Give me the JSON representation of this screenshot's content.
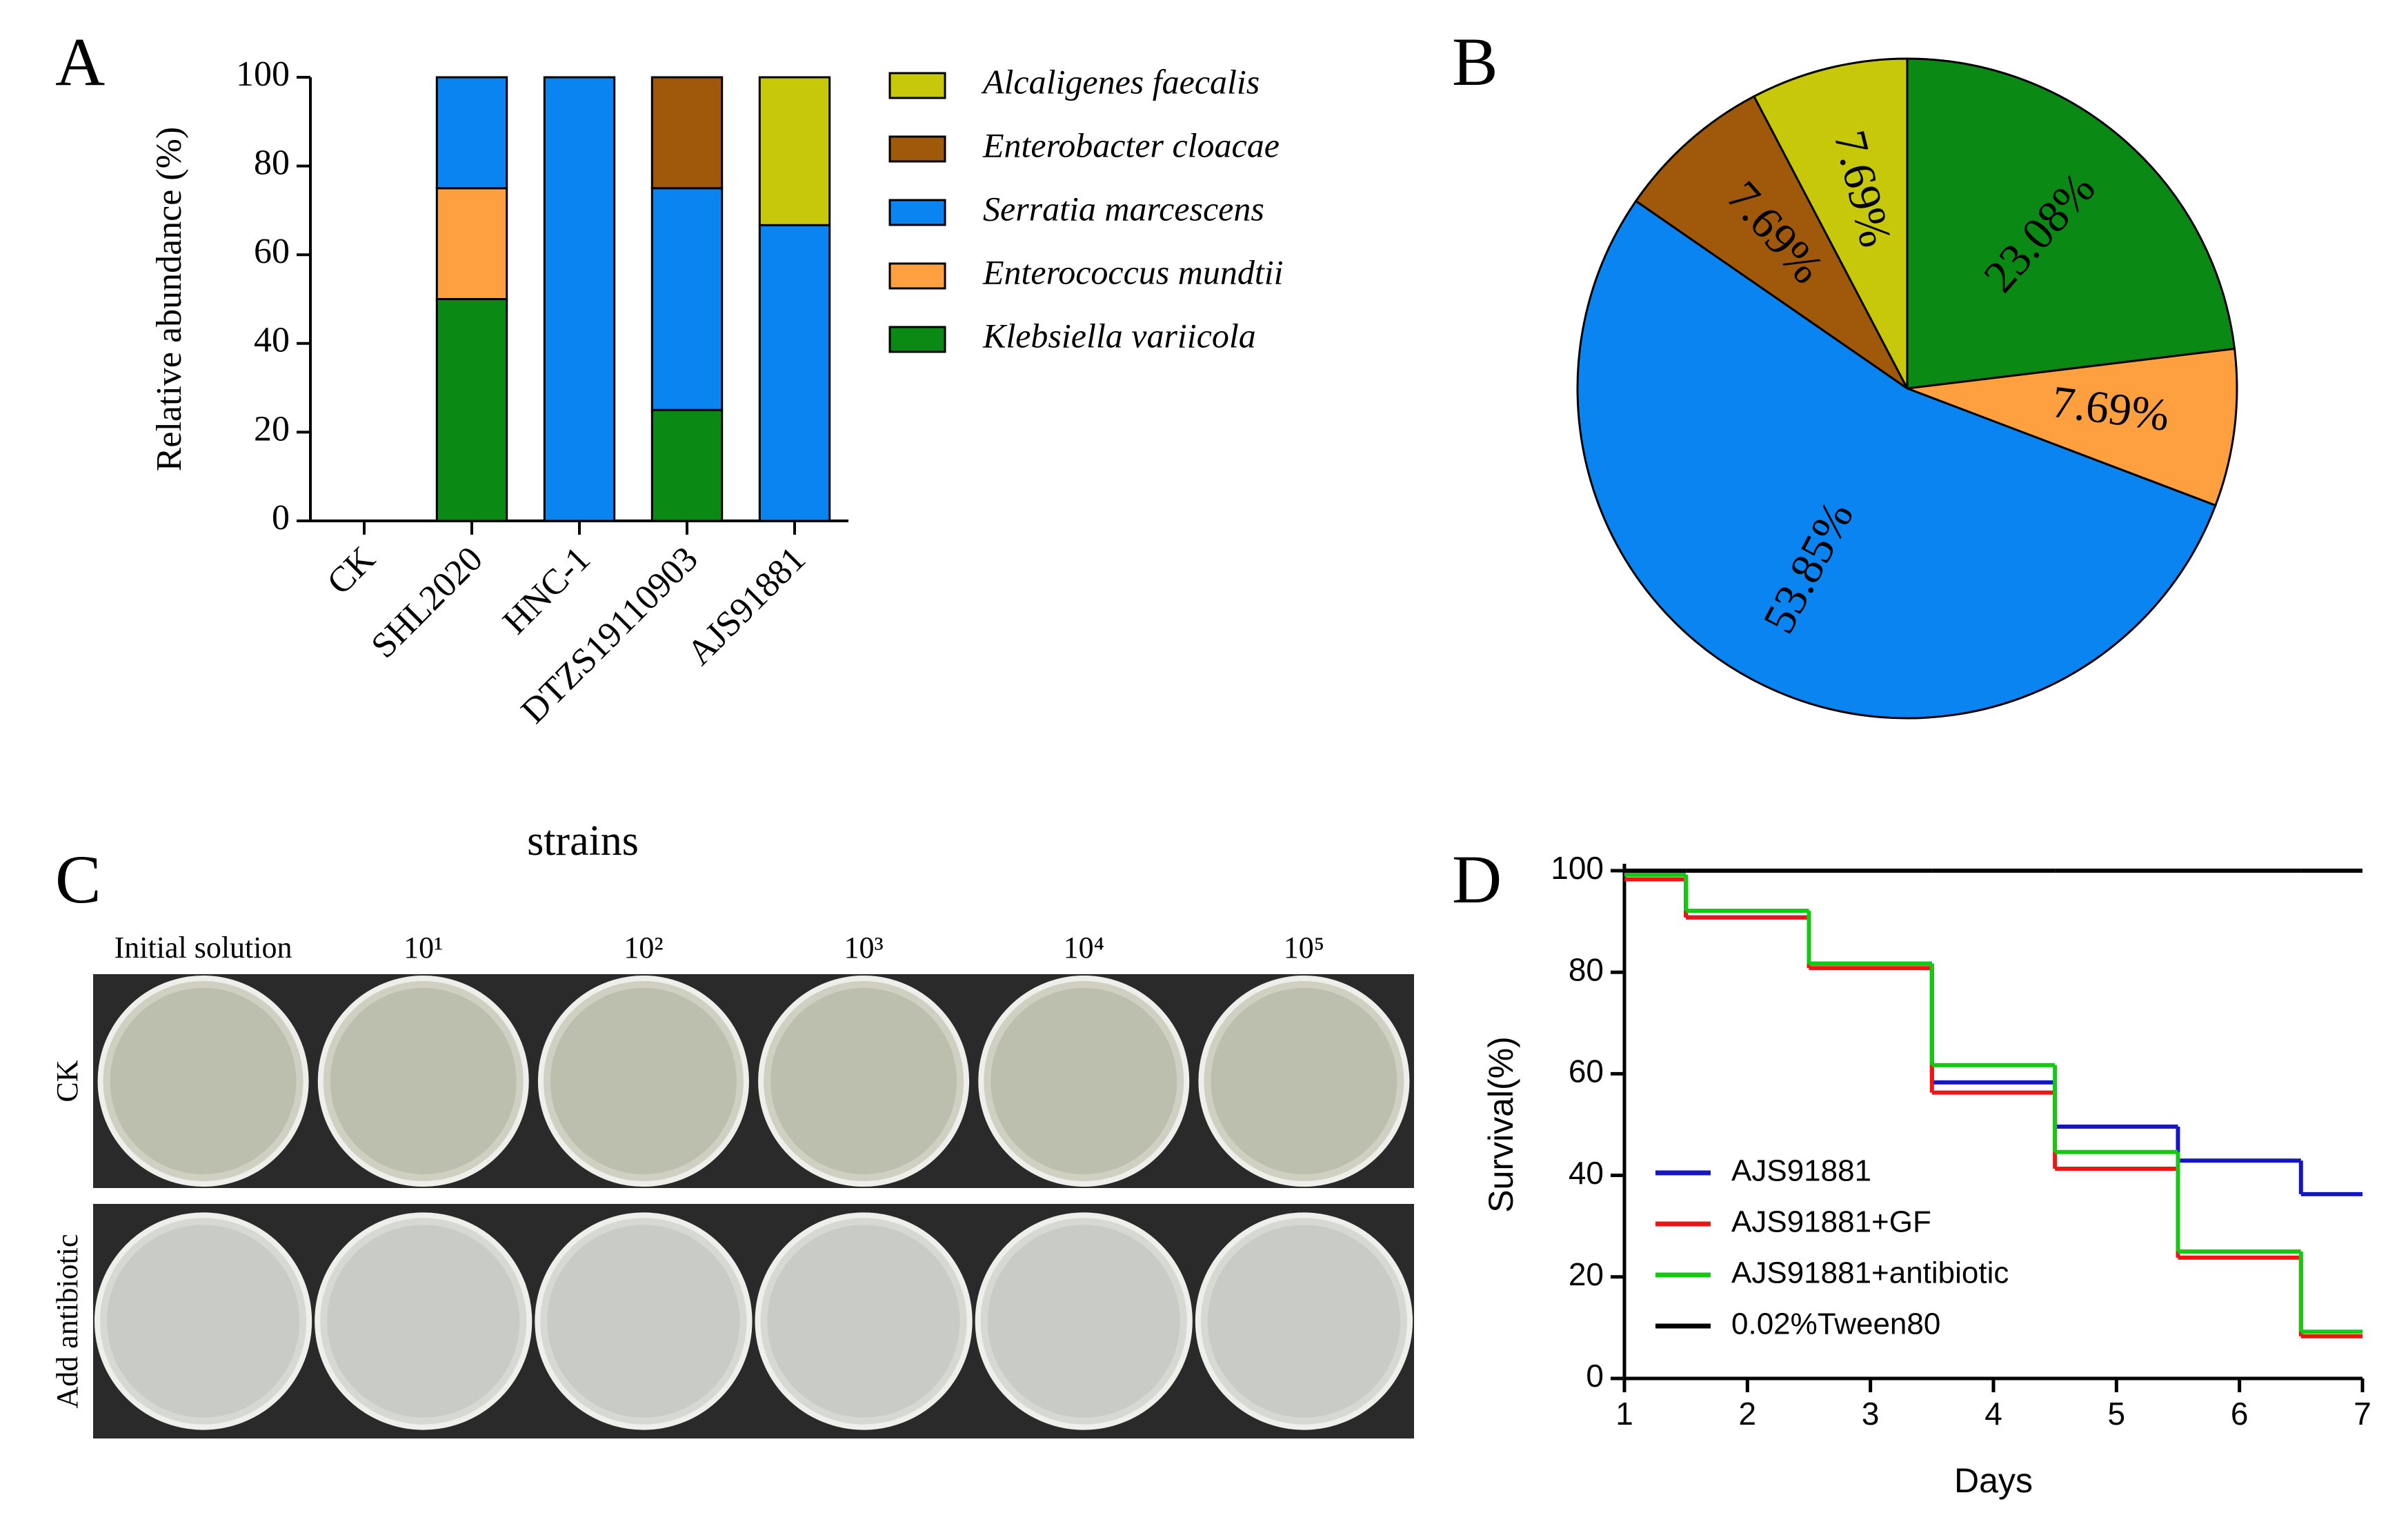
{
  "chart_data": [
    {
      "type": "bar",
      "label": "A",
      "stacked": true,
      "categories": [
        "CK",
        "SHL2020",
        "HNC-1",
        "DTZS19110903",
        "AJS91881"
      ],
      "series": [
        {
          "name": "Klebsiella variicola",
          "color": "#0a8a14",
          "values": [
            0,
            50,
            0,
            25,
            0
          ]
        },
        {
          "name": "Enterococcus mundtii",
          "color": "#ffa040",
          "values": [
            0,
            25,
            0,
            0,
            0
          ]
        },
        {
          "name": "Serratia marcescens",
          "color": "#0a84f0",
          "values": [
            0,
            25,
            100,
            50,
            66.67
          ]
        },
        {
          "name": "Enterobacter cloacae",
          "color": "#a0580a",
          "values": [
            0,
            0,
            0,
            25,
            0
          ]
        },
        {
          "name": "Alcaligenes faecalis",
          "color": "#c8c80a",
          "values": [
            0,
            0,
            0,
            0,
            33.33
          ]
        }
      ],
      "ylabel": "Relative abundance (%)",
      "xlabel": "strains",
      "ylim": [
        0,
        100
      ],
      "yticks": [
        0,
        20,
        40,
        60,
        80,
        100
      ]
    },
    {
      "type": "pie",
      "label": "B",
      "values": [
        23.08,
        7.69,
        53.85,
        7.69,
        7.69
      ],
      "value_labels": [
        "23.08%",
        "7.69%",
        "53.85%",
        "7.69%",
        "7.69%"
      ],
      "colors": [
        "#0a8a14",
        "#ffa040",
        "#0a84f0",
        "#a0580a",
        "#c8c80a"
      ]
    },
    {
      "type": "line",
      "label": "D",
      "step": "post",
      "x": [
        1,
        1.5,
        2.5,
        3.5,
        4.5,
        5.5,
        6.5,
        7
      ],
      "series": [
        {
          "name": "AJS91881",
          "color": "#1414c8",
          "values": [
            98.3,
            90.8,
            81.7,
            58.3,
            49.6,
            42.9,
            36.3,
            36.3
          ]
        },
        {
          "name": "AJS91881+GF",
          "color": "#f01414",
          "values": [
            98.3,
            90.8,
            80.8,
            56.3,
            41.3,
            23.8,
            8.3,
            8.3
          ]
        },
        {
          "name": "AJS91881+antibiotic",
          "color": "#14c814",
          "values": [
            99.2,
            92.1,
            81.7,
            61.7,
            44.6,
            25,
            9.2,
            9.2
          ]
        },
        {
          "name": "0.02%Tween80",
          "color": "#000000",
          "values": [
            100,
            100,
            100,
            100,
            100,
            100,
            100,
            100
          ]
        }
      ],
      "xlabel": "Days",
      "ylabel": "Survival(%)",
      "xlim": [
        1,
        7
      ],
      "xticks": [
        1,
        2,
        3,
        4,
        5,
        6,
        7
      ],
      "ylim": [
        0,
        100
      ],
      "yticks": [
        0,
        20,
        40,
        60,
        80,
        100
      ]
    }
  ],
  "plates": {
    "label": "C",
    "columns": [
      "Initial solution",
      "10¹",
      "10²",
      "10³",
      "10⁴",
      "10⁵"
    ],
    "rows": [
      "CK",
      "Add antibiotic"
    ]
  }
}
